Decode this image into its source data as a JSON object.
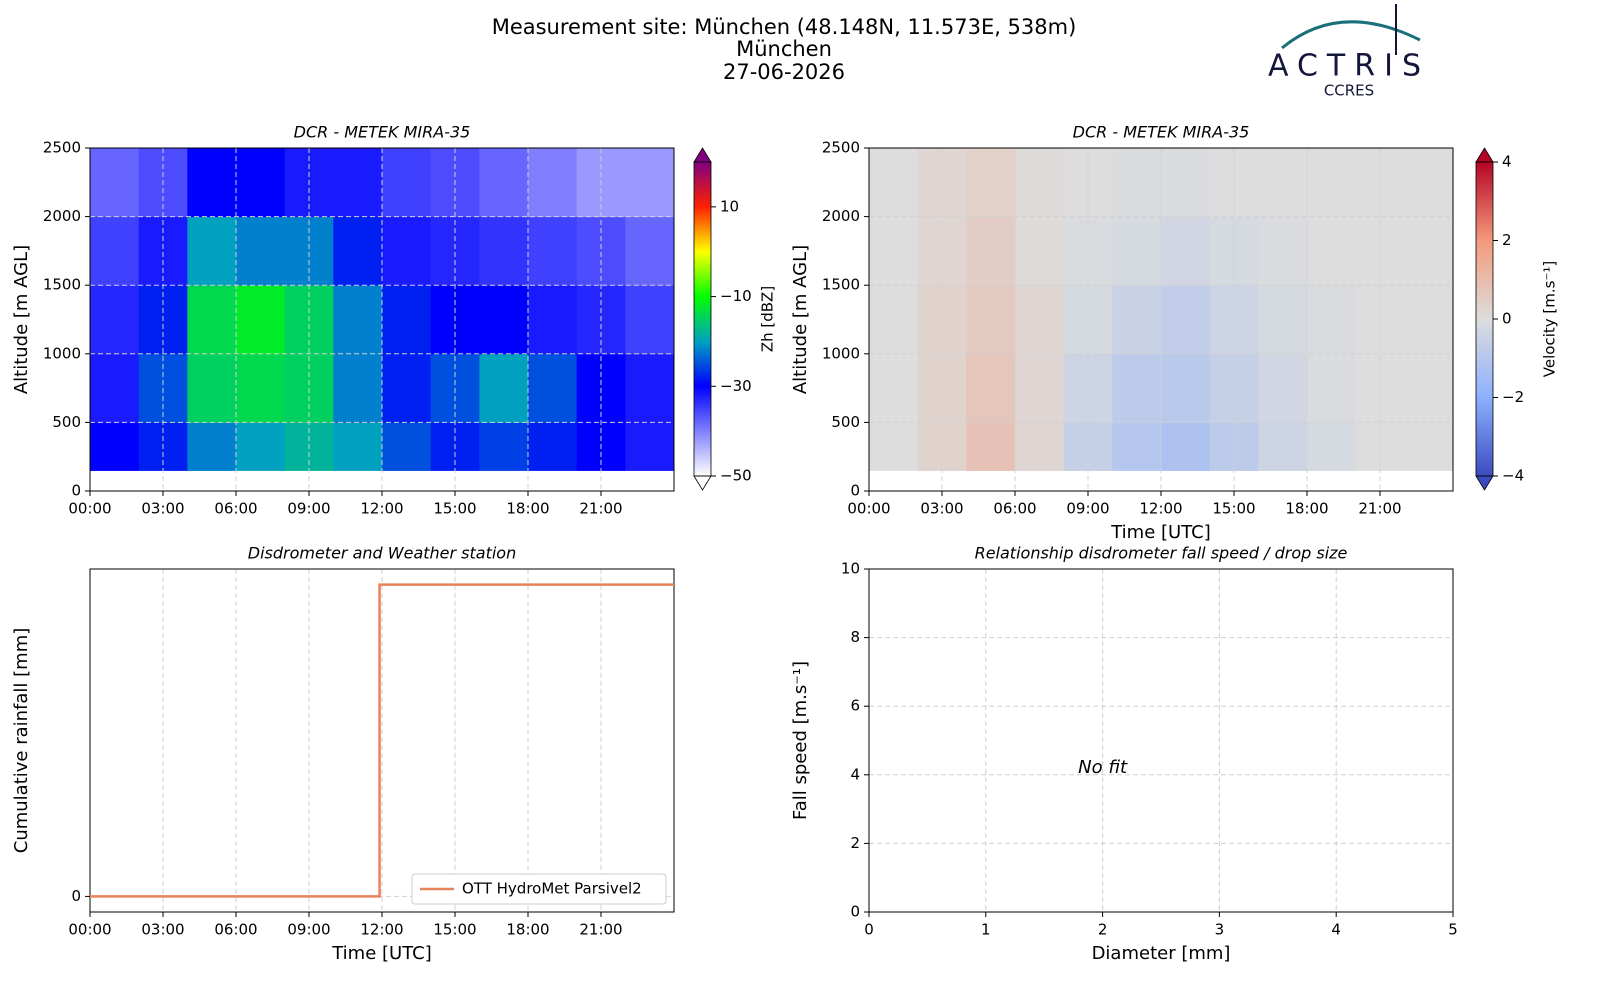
{
  "header": {
    "lines": [
      "Measurement site: München (48.148N, 11.573E, 538m)",
      "München",
      "27-06-2026"
    ]
  },
  "logo": {
    "text": "ACTRIS",
    "subtext": "CCRES"
  },
  "chart_data": [
    {
      "type": "heatmap",
      "title": "DCR - METEK MIRA-35",
      "ylabel": "Altitude [m AGL]",
      "grid": true,
      "xlim": [
        0,
        24
      ],
      "ylim": [
        0,
        2500
      ],
      "xticks": [
        {
          "value": 0,
          "label": "00:00"
        },
        {
          "value": 3,
          "label": "03:00"
        },
        {
          "value": 6,
          "label": "06:00"
        },
        {
          "value": 9,
          "label": "09:00"
        },
        {
          "value": 12,
          "label": "12:00"
        },
        {
          "value": 15,
          "label": "15:00"
        },
        {
          "value": 18,
          "label": "18:00"
        },
        {
          "value": 21,
          "label": "21:00"
        }
      ],
      "yticks": [
        0,
        500,
        1000,
        1500,
        2000,
        2500
      ],
      "x_edges": [
        0,
        2,
        4,
        6,
        8,
        10,
        12,
        14,
        16,
        18,
        20,
        22,
        24
      ],
      "y_edges": [
        150,
        500,
        1000,
        1500,
        2000,
        2500
      ],
      "z": [
        [
          -30,
          -28,
          -22,
          -20,
          -18,
          -20,
          -25,
          -28,
          -26,
          -28,
          -30,
          -32
        ],
        [
          -32,
          -25,
          -15,
          -14,
          -15,
          -22,
          -28,
          -25,
          -20,
          -25,
          -30,
          -32
        ],
        [
          -33,
          -28,
          -14,
          -12,
          -15,
          -22,
          -28,
          -30,
          -30,
          -32,
          -33,
          -35
        ],
        [
          -35,
          -32,
          -20,
          -22,
          -22,
          -28,
          -32,
          -33,
          -34,
          -35,
          -36,
          -38
        ],
        [
          -38,
          -36,
          -30,
          -30,
          -32,
          -32,
          -35,
          -36,
          -38,
          -40,
          -42,
          -42
        ]
      ],
      "clim": [
        -50,
        20
      ],
      "cticks": [
        {
          "value": -50,
          "label": "−50"
        },
        {
          "value": -30,
          "label": "−30"
        },
        {
          "value": -10,
          "label": "−10"
        },
        10
      ],
      "clabel": "Zh [dBZ]",
      "colormap": [
        "#ffffff",
        "#8080ff",
        "#0000ff",
        "#00a0c0",
        "#00ff00",
        "#ffff00",
        "#ff2000",
        "#800080"
      ]
    },
    {
      "type": "heatmap",
      "title": "DCR - METEK MIRA-35",
      "xlabel": "Time [UTC]",
      "ylabel": "Altitude [m AGL]",
      "grid": true,
      "xlim": [
        0,
        24
      ],
      "ylim": [
        0,
        2500
      ],
      "xticks": [
        {
          "value": 0,
          "label": "00:00"
        },
        {
          "value": 3,
          "label": "03:00"
        },
        {
          "value": 6,
          "label": "06:00"
        },
        {
          "value": 9,
          "label": "09:00"
        },
        {
          "value": 12,
          "label": "12:00"
        },
        {
          "value": 15,
          "label": "15:00"
        },
        {
          "value": 18,
          "label": "18:00"
        },
        {
          "value": 21,
          "label": "21:00"
        }
      ],
      "yticks": [
        0,
        500,
        1000,
        1500,
        2000,
        2500
      ],
      "x_edges": [
        0,
        2,
        4,
        6,
        8,
        10,
        12,
        14,
        16,
        18,
        20,
        22,
        24
      ],
      "y_edges": [
        150,
        500,
        1000,
        1500,
        2000,
        2500
      ],
      "z": [
        [
          0,
          0.3,
          0.8,
          0.2,
          -0.6,
          -1.0,
          -1.2,
          -0.8,
          -0.4,
          -0.2,
          0,
          0
        ],
        [
          0,
          0.3,
          0.7,
          0.2,
          -0.4,
          -0.8,
          -0.9,
          -0.6,
          -0.3,
          -0.1,
          0,
          0
        ],
        [
          0,
          0.3,
          0.6,
          0.2,
          -0.2,
          -0.5,
          -0.7,
          -0.4,
          -0.2,
          -0.1,
          0,
          0
        ],
        [
          0,
          0.2,
          0.5,
          0.1,
          -0.1,
          -0.2,
          -0.3,
          -0.2,
          -0.1,
          0,
          0,
          0
        ],
        [
          0,
          0.2,
          0.4,
          0.1,
          0,
          -0.1,
          -0.1,
          0,
          0,
          0,
          0,
          0
        ]
      ],
      "clim": [
        -4,
        4
      ],
      "cticks": [
        {
          "value": -4,
          "label": "−4"
        },
        {
          "value": -2,
          "label": "−2"
        },
        0,
        2,
        4
      ],
      "clabel": "Velocity [m.s⁻¹]",
      "colormap": [
        "#3b4cc0",
        "#8db0fe",
        "#dddddd",
        "#f49a7b",
        "#b40426"
      ]
    },
    {
      "type": "line",
      "title": "Disdrometer and Weather station",
      "xlabel": "Time [UTC]",
      "ylabel": "Cumulative rainfall [mm]",
      "grid": true,
      "xlim": [
        0,
        24
      ],
      "ylim": [
        -0.005,
        0.105
      ],
      "xticks": [
        {
          "value": 0,
          "label": "00:00"
        },
        {
          "value": 3,
          "label": "03:00"
        },
        {
          "value": 6,
          "label": "06:00"
        },
        {
          "value": 9,
          "label": "09:00"
        },
        {
          "value": 12,
          "label": "12:00"
        },
        {
          "value": 15,
          "label": "15:00"
        },
        {
          "value": 18,
          "label": "18:00"
        },
        {
          "value": 21,
          "label": "21:00"
        }
      ],
      "yticks": [
        0
      ],
      "x": [
        0,
        11.9,
        11.9,
        24
      ],
      "series": [
        {
          "name": "OTT HydroMet Parsivel2",
          "color": "#e8825a",
          "values": [
            0,
            0,
            0.1,
            0.1
          ]
        }
      ],
      "legend": "lower right"
    },
    {
      "type": "scatter",
      "title": "Relationship disdrometer fall speed / drop size",
      "xlabel": "Diameter [mm]",
      "ylabel": "Fall speed [m.s⁻¹]",
      "grid": true,
      "xlim": [
        0,
        5
      ],
      "ylim": [
        0,
        10
      ],
      "xticks": [
        0,
        1,
        2,
        3,
        4,
        5
      ],
      "yticks": [
        0,
        2,
        4,
        6,
        8,
        10
      ],
      "annotation": "No fit"
    }
  ]
}
